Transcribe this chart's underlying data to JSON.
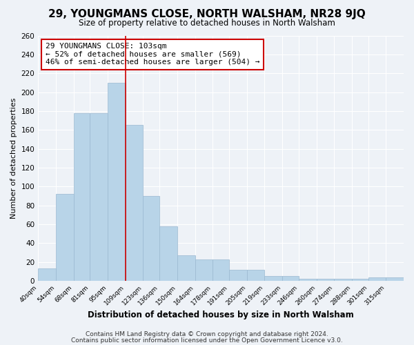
{
  "title": "29, YOUNGMANS CLOSE, NORTH WALSHAM, NR28 9JQ",
  "subtitle": "Size of property relative to detached houses in North Walsham",
  "xlabel": "Distribution of detached houses by size in North Walsham",
  "ylabel": "Number of detached properties",
  "bin_labels": [
    "40sqm",
    "54sqm",
    "68sqm",
    "81sqm",
    "95sqm",
    "109sqm",
    "123sqm",
    "136sqm",
    "150sqm",
    "164sqm",
    "178sqm",
    "191sqm",
    "205sqm",
    "219sqm",
    "233sqm",
    "246sqm",
    "260sqm",
    "274sqm",
    "288sqm",
    "301sqm",
    "315sqm"
  ],
  "bin_values": [
    13,
    92,
    178,
    178,
    210,
    165,
    90,
    58,
    27,
    23,
    23,
    12,
    12,
    5,
    5,
    2,
    2,
    2,
    2,
    4,
    4
  ],
  "bar_color": "#b8d4e8",
  "bar_edgecolor": "#9ab8d0",
  "vline_color": "#cc0000",
  "annotation_text": "29 YOUNGMANS CLOSE: 103sqm\n← 52% of detached houses are smaller (569)\n46% of semi-detached houses are larger (504) →",
  "annotation_box_edgecolor": "#cc0000",
  "ylim": [
    0,
    260
  ],
  "yticks": [
    0,
    20,
    40,
    60,
    80,
    100,
    120,
    140,
    160,
    180,
    200,
    220,
    240,
    260
  ],
  "footer1": "Contains HM Land Registry data © Crown copyright and database right 2024.",
  "footer2": "Contains public sector information licensed under the Open Government Licence v3.0.",
  "background_color": "#eef2f7",
  "grid_color": "#ffffff",
  "title_fontsize": 11,
  "subtitle_fontsize": 8.5,
  "annotation_fontsize": 8,
  "footer_fontsize": 6.5,
  "ylabel_fontsize": 8,
  "xlabel_fontsize": 8.5
}
